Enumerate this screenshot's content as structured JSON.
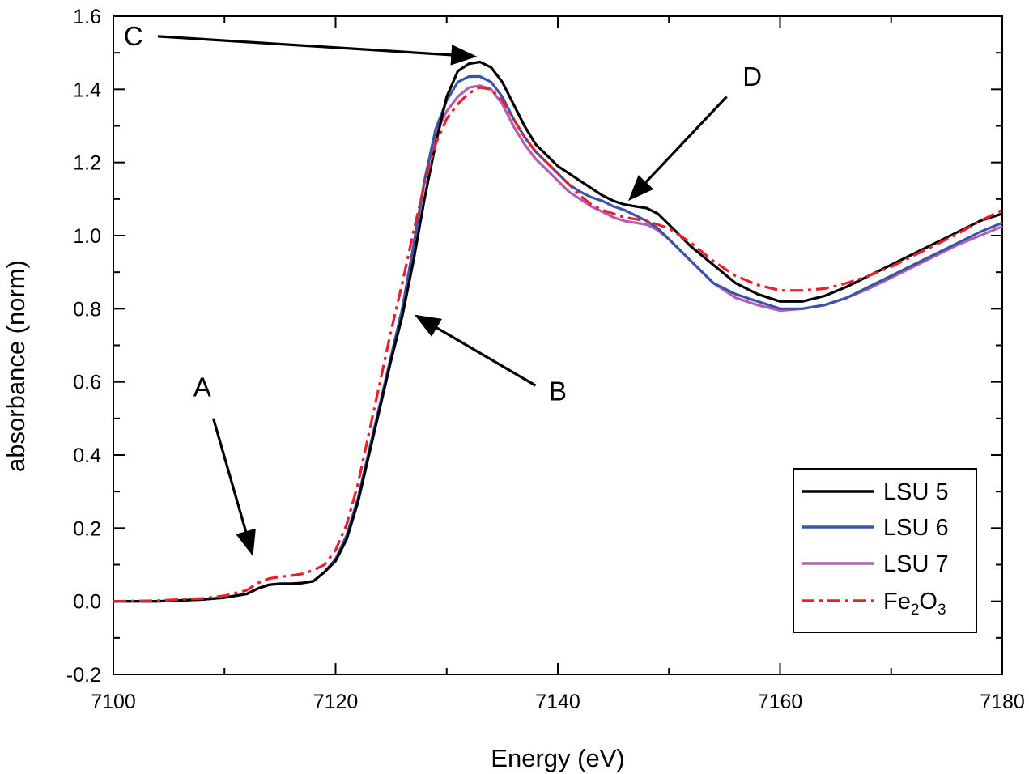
{
  "chart_data": {
    "type": "line",
    "title": "",
    "xlabel": "Energy (eV)",
    "ylabel": "absorbance (norm)",
    "xlim": [
      7100,
      7180
    ],
    "ylim": [
      -0.2,
      1.6
    ],
    "xticks": [
      7100,
      7120,
      7140,
      7160,
      7180
    ],
    "xtick_labels": [
      "7100",
      "7120",
      "7140",
      "7160",
      "7180"
    ],
    "yticks": [
      -0.2,
      0.0,
      0.2,
      0.4,
      0.6,
      0.8,
      1.0,
      1.2,
      1.4,
      1.6
    ],
    "ytick_labels": [
      "-0.2",
      "0.0",
      "0.2",
      "0.4",
      "0.6",
      "0.8",
      "1.0",
      "1.2",
      "1.4",
      "1.6"
    ],
    "grid": false,
    "legend_position": "bottom-right",
    "series": [
      {
        "name": "LSU 5",
        "color": "#000000",
        "dash": "solid",
        "x": [
          7100,
          7104,
          7108,
          7110,
          7112,
          7113,
          7114,
          7115,
          7116,
          7117,
          7118,
          7119,
          7120,
          7121,
          7122,
          7123,
          7124,
          7125,
          7126,
          7127,
          7128,
          7129,
          7130,
          7131,
          7132,
          7133,
          7134,
          7135,
          7136,
          7137,
          7138,
          7139,
          7140,
          7141,
          7142,
          7143,
          7144,
          7145,
          7146,
          7147,
          7148,
          7149,
          7150,
          7152,
          7154,
          7156,
          7158,
          7160,
          7162,
          7164,
          7166,
          7168,
          7170,
          7172,
          7174,
          7176,
          7178,
          7180
        ],
        "y": [
          0.0,
          0.0,
          0.005,
          0.01,
          0.02,
          0.035,
          0.045,
          0.048,
          0.048,
          0.05,
          0.055,
          0.08,
          0.11,
          0.17,
          0.27,
          0.4,
          0.53,
          0.66,
          0.78,
          0.93,
          1.1,
          1.25,
          1.38,
          1.45,
          1.47,
          1.475,
          1.46,
          1.42,
          1.36,
          1.3,
          1.25,
          1.22,
          1.19,
          1.17,
          1.15,
          1.13,
          1.11,
          1.095,
          1.085,
          1.08,
          1.075,
          1.06,
          1.03,
          0.97,
          0.92,
          0.87,
          0.84,
          0.82,
          0.82,
          0.835,
          0.86,
          0.89,
          0.92,
          0.95,
          0.98,
          1.01,
          1.04,
          1.06
        ]
      },
      {
        "name": "LSU 6",
        "color": "#3a55a8",
        "dash": "solid",
        "x": [
          7100,
          7104,
          7108,
          7110,
          7112,
          7113,
          7114,
          7115,
          7116,
          7117,
          7118,
          7119,
          7120,
          7121,
          7122,
          7123,
          7124,
          7125,
          7126,
          7127,
          7128,
          7129,
          7130,
          7131,
          7132,
          7133,
          7134,
          7135,
          7136,
          7137,
          7138,
          7139,
          7140,
          7141,
          7142,
          7143,
          7144,
          7145,
          7146,
          7147,
          7148,
          7149,
          7150,
          7152,
          7154,
          7156,
          7158,
          7160,
          7162,
          7164,
          7166,
          7168,
          7170,
          7172,
          7174,
          7176,
          7178,
          7180
        ],
        "y": [
          0.0,
          0.0,
          0.005,
          0.01,
          0.02,
          0.035,
          0.045,
          0.048,
          0.048,
          0.05,
          0.055,
          0.08,
          0.115,
          0.18,
          0.28,
          0.41,
          0.54,
          0.67,
          0.8,
          0.97,
          1.15,
          1.29,
          1.37,
          1.42,
          1.435,
          1.435,
          1.42,
          1.38,
          1.32,
          1.27,
          1.23,
          1.2,
          1.17,
          1.14,
          1.12,
          1.105,
          1.095,
          1.08,
          1.07,
          1.055,
          1.04,
          1.02,
          0.99,
          0.93,
          0.87,
          0.84,
          0.82,
          0.8,
          0.8,
          0.81,
          0.83,
          0.86,
          0.89,
          0.92,
          0.95,
          0.98,
          1.01,
          1.035
        ]
      },
      {
        "name": "LSU 7",
        "color": "#b45fb4",
        "dash": "solid",
        "x": [
          7100,
          7104,
          7108,
          7110,
          7112,
          7113,
          7114,
          7115,
          7116,
          7117,
          7118,
          7119,
          7120,
          7121,
          7122,
          7123,
          7124,
          7125,
          7126,
          7127,
          7128,
          7129,
          7130,
          7131,
          7132,
          7133,
          7134,
          7135,
          7136,
          7137,
          7138,
          7139,
          7140,
          7141,
          7142,
          7143,
          7144,
          7145,
          7146,
          7147,
          7148,
          7149,
          7150,
          7152,
          7154,
          7156,
          7158,
          7160,
          7162,
          7164,
          7166,
          7168,
          7170,
          7172,
          7174,
          7176,
          7178,
          7180
        ],
        "y": [
          0.0,
          0.0,
          0.005,
          0.01,
          0.02,
          0.035,
          0.045,
          0.048,
          0.048,
          0.05,
          0.055,
          0.08,
          0.115,
          0.18,
          0.28,
          0.41,
          0.54,
          0.67,
          0.8,
          0.97,
          1.15,
          1.28,
          1.34,
          1.38,
          1.405,
          1.41,
          1.4,
          1.36,
          1.3,
          1.25,
          1.21,
          1.18,
          1.15,
          1.12,
          1.1,
          1.08,
          1.065,
          1.05,
          1.04,
          1.035,
          1.03,
          1.015,
          0.99,
          0.93,
          0.87,
          0.83,
          0.81,
          0.795,
          0.8,
          0.81,
          0.83,
          0.855,
          0.885,
          0.915,
          0.945,
          0.975,
          1.0,
          1.025
        ]
      },
      {
        "name": "Fe2O3",
        "name_parts": [
          "Fe",
          "2",
          "O",
          "3"
        ],
        "color": "#e8202a",
        "dash": "dashdot",
        "x": [
          7100,
          7104,
          7108,
          7110,
          7112,
          7113,
          7114,
          7115,
          7116,
          7117,
          7118,
          7119,
          7120,
          7121,
          7122,
          7123,
          7124,
          7125,
          7126,
          7127,
          7128,
          7129,
          7130,
          7131,
          7132,
          7133,
          7134,
          7135,
          7136,
          7137,
          7138,
          7139,
          7140,
          7141,
          7142,
          7143,
          7144,
          7145,
          7146,
          7147,
          7148,
          7149,
          7150,
          7152,
          7154,
          7156,
          7158,
          7160,
          7162,
          7164,
          7166,
          7168,
          7170,
          7172,
          7174,
          7176,
          7178,
          7180
        ],
        "y": [
          0.0,
          0.002,
          0.008,
          0.015,
          0.03,
          0.05,
          0.062,
          0.067,
          0.07,
          0.075,
          0.085,
          0.1,
          0.14,
          0.21,
          0.32,
          0.46,
          0.6,
          0.74,
          0.87,
          1.01,
          1.14,
          1.25,
          1.32,
          1.36,
          1.39,
          1.405,
          1.4,
          1.37,
          1.32,
          1.27,
          1.23,
          1.2,
          1.17,
          1.14,
          1.11,
          1.085,
          1.07,
          1.06,
          1.05,
          1.045,
          1.04,
          1.03,
          1.02,
          0.98,
          0.93,
          0.89,
          0.865,
          0.85,
          0.85,
          0.855,
          0.87,
          0.89,
          0.915,
          0.945,
          0.975,
          1.005,
          1.04,
          1.07
        ]
      }
    ],
    "annotations": [
      {
        "label": "A",
        "target": [
          7112.5,
          0.13
        ],
        "text_at": [
          7108,
          0.56
        ],
        "tail": [
          7109,
          0.5
        ]
      },
      {
        "label": "B",
        "target": [
          7127.3,
          0.78
        ],
        "text_at": [
          7140,
          0.55
        ],
        "tail": [
          7138,
          0.59
        ]
      },
      {
        "label": "C",
        "target": [
          7132.5,
          1.49
        ],
        "text_at": [
          7101.8,
          1.52
        ],
        "tail": [
          7104,
          1.545
        ]
      },
      {
        "label": "D",
        "target": [
          7146.5,
          1.1
        ],
        "text_at": [
          7157.5,
          1.41
        ],
        "tail": [
          7155.2,
          1.38
        ]
      }
    ]
  }
}
